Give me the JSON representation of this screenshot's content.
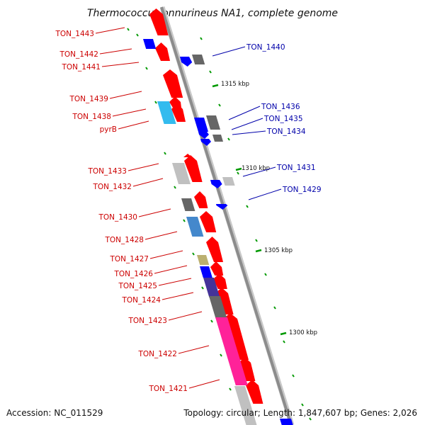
{
  "title": "Thermococcus onnurineus NA1, complete genome",
  "footer": {
    "accession": "Accession: NC_011529",
    "topology": "Topology: circular; Length: 1,847,607 bp; Genes: 2,026"
  },
  "colors": {
    "backbone": "#8c8c8c",
    "forward_label": "#cc0000",
    "reverse_label": "#0000aa",
    "tick": "#009900"
  },
  "scale_labels": [
    "1315 kbp",
    "1310 kbp",
    "1305 kbp",
    "1300 kbp"
  ],
  "forward_genes": [
    "TON_1443",
    "TON_1442",
    "TON_1441",
    "TON_1439",
    "TON_1438",
    "pyrB",
    "TON_1433",
    "TON_1432",
    "TON_1430",
    "TON_1428",
    "TON_1427",
    "TON_1426",
    "TON_1425",
    "TON_1424",
    "TON_1423",
    "TON_1422",
    "TON_1421"
  ],
  "reverse_genes": [
    "TON_1440",
    "TON_1436",
    "TON_1435",
    "TON_1434",
    "TON_1431",
    "TON_1429"
  ]
}
